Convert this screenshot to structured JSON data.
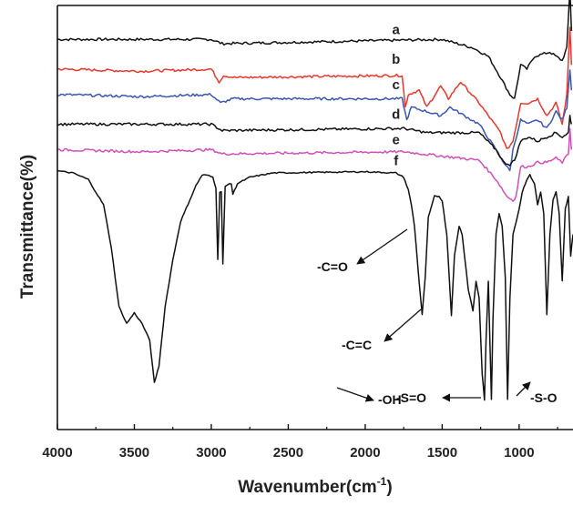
{
  "chart_data": {
    "type": "line",
    "title": "",
    "xlabel": "Wavenumber(cm",
    "xlabel_sup": "-1",
    "xlabel_close": ")",
    "ylabel": "Transmittance(%)",
    "xlim": [
      4000,
      650
    ],
    "x_reversed": true,
    "grid": false,
    "legend": "none",
    "x_ticks": [
      4000,
      3500,
      3000,
      2500,
      2000,
      1500,
      1000
    ],
    "series": [
      {
        "name": "a",
        "color": "#111111",
        "baseline": 9.2,
        "points": [
          [
            4000,
            0
          ],
          [
            3000,
            0
          ],
          [
            2930,
            -0.1
          ],
          [
            1500,
            0
          ],
          [
            1300,
            -0.2
          ],
          [
            1200,
            -0.4
          ],
          [
            1120,
            -0.9
          ],
          [
            1060,
            -1.3
          ],
          [
            1030,
            -1.4
          ],
          [
            990,
            -0.6
          ],
          [
            950,
            -0.7
          ],
          [
            900,
            -0.4
          ],
          [
            800,
            -0.3
          ],
          [
            720,
            -0.5
          ],
          [
            690,
            -0.2
          ],
          [
            670,
            1.2
          ],
          [
            660,
            0.2
          ]
        ]
      },
      {
        "name": "b",
        "color": "#e8372f",
        "baseline": 8.5,
        "points": [
          [
            4000,
            0
          ],
          [
            3450,
            -0.05
          ],
          [
            3000,
            0
          ],
          [
            2950,
            -0.3
          ],
          [
            2920,
            -0.15
          ],
          [
            2850,
            -0.2
          ],
          [
            1760,
            -0.15
          ],
          [
            1740,
            -0.9
          ],
          [
            1720,
            -0.6
          ],
          [
            1650,
            -0.5
          ],
          [
            1600,
            -0.9
          ],
          [
            1510,
            -0.4
          ],
          [
            1460,
            -0.7
          ],
          [
            1380,
            -0.3
          ],
          [
            1260,
            -0.8
          ],
          [
            1180,
            -1.2
          ],
          [
            1120,
            -1.5
          ],
          [
            1080,
            -1.9
          ],
          [
            1040,
            -1.7
          ],
          [
            990,
            -0.8
          ],
          [
            940,
            -0.8
          ],
          [
            880,
            -0.7
          ],
          [
            820,
            -1.1
          ],
          [
            760,
            -0.8
          ],
          [
            720,
            -1.3
          ],
          [
            690,
            -0.6
          ],
          [
            670,
            1.0
          ],
          [
            660,
            0.1
          ]
        ]
      },
      {
        "name": "c",
        "color": "#3a57b0",
        "baseline": 7.9,
        "points": [
          [
            4000,
            0
          ],
          [
            3450,
            -0.05
          ],
          [
            3000,
            0
          ],
          [
            2940,
            -0.2
          ],
          [
            2860,
            -0.1
          ],
          [
            1760,
            -0.1
          ],
          [
            1730,
            -0.6
          ],
          [
            1700,
            -0.3
          ],
          [
            1600,
            -0.4
          ],
          [
            1510,
            -0.5
          ],
          [
            1450,
            -0.3
          ],
          [
            1260,
            -0.7
          ],
          [
            1150,
            -1.3
          ],
          [
            1100,
            -1.6
          ],
          [
            1060,
            -1.8
          ],
          [
            1040,
            -1.3
          ],
          [
            990,
            -0.6
          ],
          [
            940,
            -0.7
          ],
          [
            880,
            -0.6
          ],
          [
            820,
            -0.8
          ],
          [
            760,
            -0.4
          ],
          [
            720,
            -0.6
          ],
          [
            690,
            -0.3
          ],
          [
            670,
            0.6
          ],
          [
            660,
            0.1
          ]
        ]
      },
      {
        "name": "d",
        "color": "#111111",
        "baseline": 7.2,
        "points": [
          [
            4000,
            0
          ],
          [
            3000,
            0
          ],
          [
            2930,
            -0.15
          ],
          [
            1750,
            -0.1
          ],
          [
            1600,
            -0.2
          ],
          [
            1260,
            -0.2
          ],
          [
            1150,
            -0.6
          ],
          [
            1100,
            -0.9
          ],
          [
            1060,
            -0.95
          ],
          [
            1030,
            -0.85
          ],
          [
            990,
            -0.4
          ],
          [
            940,
            -0.3
          ],
          [
            880,
            -0.4
          ],
          [
            820,
            -0.3
          ],
          [
            760,
            -0.2
          ],
          [
            720,
            -0.3
          ],
          [
            680,
            -0.2
          ],
          [
            670,
            0.2
          ],
          [
            660,
            0
          ]
        ]
      },
      {
        "name": "e",
        "color": "#d050b8",
        "baseline": 6.6,
        "points": [
          [
            4000,
            0
          ],
          [
            3450,
            -0.05
          ],
          [
            3000,
            0
          ],
          [
            2930,
            -0.1
          ],
          [
            1750,
            -0.05
          ],
          [
            1260,
            -0.25
          ],
          [
            1150,
            -0.7
          ],
          [
            1080,
            -1.1
          ],
          [
            1040,
            -1.2
          ],
          [
            1020,
            -1.1
          ],
          [
            990,
            -0.4
          ],
          [
            940,
            -0.4
          ],
          [
            880,
            -0.3
          ],
          [
            820,
            -0.3
          ],
          [
            760,
            -0.2
          ],
          [
            720,
            -0.3
          ],
          [
            680,
            -0.1
          ],
          [
            670,
            0.5
          ],
          [
            660,
            0
          ]
        ]
      },
      {
        "name": "f",
        "color": "#111111",
        "baseline": 6.1,
        "points": [
          [
            4000,
            0
          ],
          [
            3900,
            -0.05
          ],
          [
            3800,
            -0.2
          ],
          [
            3700,
            -0.8
          ],
          [
            3650,
            -1.8
          ],
          [
            3600,
            -3.2
          ],
          [
            3550,
            -3.6
          ],
          [
            3500,
            -3.35
          ],
          [
            3450,
            -3.6
          ],
          [
            3400,
            -4.0
          ],
          [
            3370,
            -5.0
          ],
          [
            3340,
            -4.6
          ],
          [
            3300,
            -3.2
          ],
          [
            3250,
            -2.1
          ],
          [
            3200,
            -1.2
          ],
          [
            3100,
            -0.35
          ],
          [
            3060,
            -0.1
          ],
          [
            3030,
            -0.1
          ],
          [
            2990,
            -0.15
          ],
          [
            2970,
            -0.4
          ],
          [
            2958,
            -2.1
          ],
          [
            2945,
            -0.5
          ],
          [
            2935,
            -0.5
          ],
          [
            2925,
            -2.2
          ],
          [
            2910,
            -0.35
          ],
          [
            2870,
            -0.3
          ],
          [
            2860,
            -0.55
          ],
          [
            2830,
            -0.3
          ],
          [
            2750,
            -0.15
          ],
          [
            2600,
            -0.05
          ],
          [
            2000,
            -0.02
          ],
          [
            1800,
            -0.05
          ],
          [
            1750,
            -0.15
          ],
          [
            1720,
            -0.45
          ],
          [
            1700,
            -0.8
          ],
          [
            1680,
            -1.3
          ],
          [
            1650,
            -2.6
          ],
          [
            1630,
            -3.4
          ],
          [
            1610,
            -2.5
          ],
          [
            1590,
            -1.1
          ],
          [
            1550,
            -0.6
          ],
          [
            1520,
            -0.6
          ],
          [
            1500,
            -0.7
          ],
          [
            1470,
            -1.5
          ],
          [
            1440,
            -3.4
          ],
          [
            1420,
            -2.0
          ],
          [
            1390,
            -1.3
          ],
          [
            1370,
            -1.5
          ],
          [
            1330,
            -2.8
          ],
          [
            1300,
            -3.3
          ],
          [
            1280,
            -2.6
          ],
          [
            1260,
            -3.0
          ],
          [
            1240,
            -4.8
          ],
          [
            1225,
            -5.4
          ],
          [
            1215,
            -4.0
          ],
          [
            1200,
            -2.6
          ],
          [
            1180,
            -5.4
          ],
          [
            1170,
            -3.5
          ],
          [
            1150,
            -1.5
          ],
          [
            1130,
            -1.0
          ],
          [
            1110,
            -1.3
          ],
          [
            1090,
            -2.5
          ],
          [
            1075,
            -5.4
          ],
          [
            1060,
            -3.0
          ],
          [
            1040,
            -1.5
          ],
          [
            1020,
            -1.2
          ],
          [
            1000,
            -0.9
          ],
          [
            980,
            -0.5
          ],
          [
            950,
            -0.2
          ],
          [
            930,
            -0.1
          ],
          [
            900,
            -0.3
          ],
          [
            880,
            -0.8
          ],
          [
            860,
            -0.5
          ],
          [
            840,
            -1.0
          ],
          [
            820,
            -3.4
          ],
          [
            800,
            -1.5
          ],
          [
            780,
            -0.7
          ],
          [
            760,
            -0.5
          ],
          [
            740,
            -1.0
          ],
          [
            720,
            -2.6
          ],
          [
            700,
            -0.9
          ],
          [
            680,
            -0.6
          ],
          [
            665,
            -2.0
          ],
          [
            650,
            -1.5
          ]
        ]
      }
    ],
    "annotations": [
      {
        "label": "-C=O"
      },
      {
        "label": "-C=C"
      },
      {
        "label": "-OH"
      },
      {
        "label": "-S=O"
      },
      {
        "label": "-S-O"
      }
    ]
  }
}
